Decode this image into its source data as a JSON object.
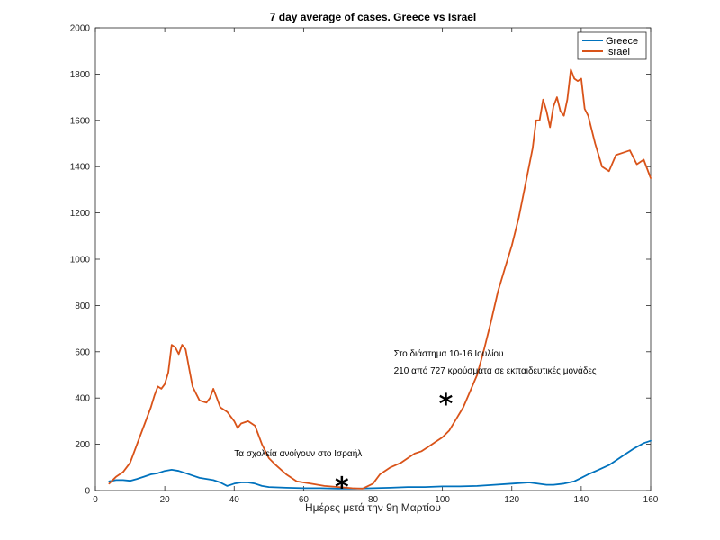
{
  "chart_data": {
    "type": "line",
    "title": "7 day average of cases. Greece vs Israel",
    "xlabel": "Ημέρες μετά την 9η Μαρτίου",
    "ylabel": "",
    "xlim": [
      0,
      160
    ],
    "ylim": [
      0,
      2000
    ],
    "x_ticks": [
      0,
      20,
      40,
      60,
      80,
      100,
      120,
      140,
      160
    ],
    "y_ticks": [
      0,
      200,
      400,
      600,
      800,
      1000,
      1200,
      1400,
      1600,
      1800,
      2000
    ],
    "grid": false,
    "legend_position": "top-right",
    "series": [
      {
        "name": "Greece",
        "color": "#0072BD",
        "x": [
          4,
          6,
          8,
          10,
          12,
          14,
          16,
          18,
          20,
          22,
          24,
          26,
          28,
          30,
          32,
          34,
          36,
          38,
          40,
          42,
          44,
          46,
          48,
          50,
          55,
          60,
          65,
          70,
          75,
          80,
          85,
          90,
          95,
          100,
          105,
          110,
          115,
          120,
          125,
          130,
          132,
          135,
          138,
          140,
          142,
          145,
          148,
          150,
          152,
          155,
          158,
          160
        ],
        "y": [
          40,
          45,
          45,
          42,
          50,
          60,
          70,
          75,
          85,
          90,
          85,
          75,
          65,
          55,
          50,
          45,
          35,
          20,
          30,
          35,
          35,
          30,
          20,
          15,
          12,
          10,
          10,
          8,
          8,
          10,
          12,
          15,
          15,
          18,
          18,
          20,
          25,
          30,
          35,
          25,
          25,
          30,
          40,
          55,
          70,
          90,
          110,
          130,
          150,
          180,
          205,
          215
        ]
      },
      {
        "name": "Israel",
        "color": "#D95319",
        "x": [
          4,
          6,
          8,
          10,
          12,
          14,
          16,
          17,
          18,
          19,
          20,
          21,
          22,
          23,
          24,
          25,
          26,
          27,
          28,
          29,
          30,
          31,
          32,
          33,
          34,
          35,
          36,
          38,
          40,
          41,
          42,
          44,
          46,
          48,
          50,
          52,
          55,
          58,
          62,
          66,
          70,
          74,
          77,
          80,
          82,
          85,
          88,
          90,
          92,
          94,
          96,
          98,
          100,
          102,
          104,
          106,
          108,
          110,
          112,
          114,
          116,
          118,
          120,
          122,
          124,
          126,
          127,
          128,
          129,
          130,
          131,
          132,
          133,
          134,
          135,
          136,
          137,
          138,
          139,
          140,
          141,
          142,
          144,
          146,
          148,
          150,
          152,
          154,
          156,
          158,
          160
        ],
        "y": [
          30,
          60,
          80,
          120,
          200,
          280,
          360,
          410,
          450,
          440,
          460,
          510,
          630,
          620,
          590,
          630,
          610,
          530,
          450,
          420,
          390,
          385,
          380,
          400,
          440,
          400,
          360,
          340,
          300,
          270,
          290,
          300,
          280,
          200,
          140,
          110,
          70,
          40,
          30,
          20,
          15,
          10,
          8,
          30,
          70,
          100,
          120,
          140,
          160,
          170,
          190,
          210,
          230,
          260,
          310,
          360,
          430,
          500,
          610,
          730,
          860,
          960,
          1060,
          1180,
          1330,
          1480,
          1600,
          1600,
          1690,
          1640,
          1570,
          1660,
          1700,
          1640,
          1620,
          1690,
          1820,
          1780,
          1770,
          1780,
          1650,
          1620,
          1500,
          1400,
          1380,
          1450,
          1460,
          1470,
          1410,
          1430,
          1350
        ]
      }
    ],
    "annotations": [
      {
        "text": "Τα σχολεία ανοίγουν στο Ισραήλ",
        "x": 40,
        "y": 148
      },
      {
        "text": "Στο διάστημα 10-16 Ιουλίου",
        "x": 86,
        "y": 580
      },
      {
        "text": "210 από 727 κρούσματα σε εκπαιδευτικές μονάδες",
        "x": 86,
        "y": 505
      }
    ],
    "markers": [
      {
        "symbol": "*",
        "x": 71,
        "y": 30
      },
      {
        "symbol": "*",
        "x": 101,
        "y": 390
      }
    ]
  }
}
